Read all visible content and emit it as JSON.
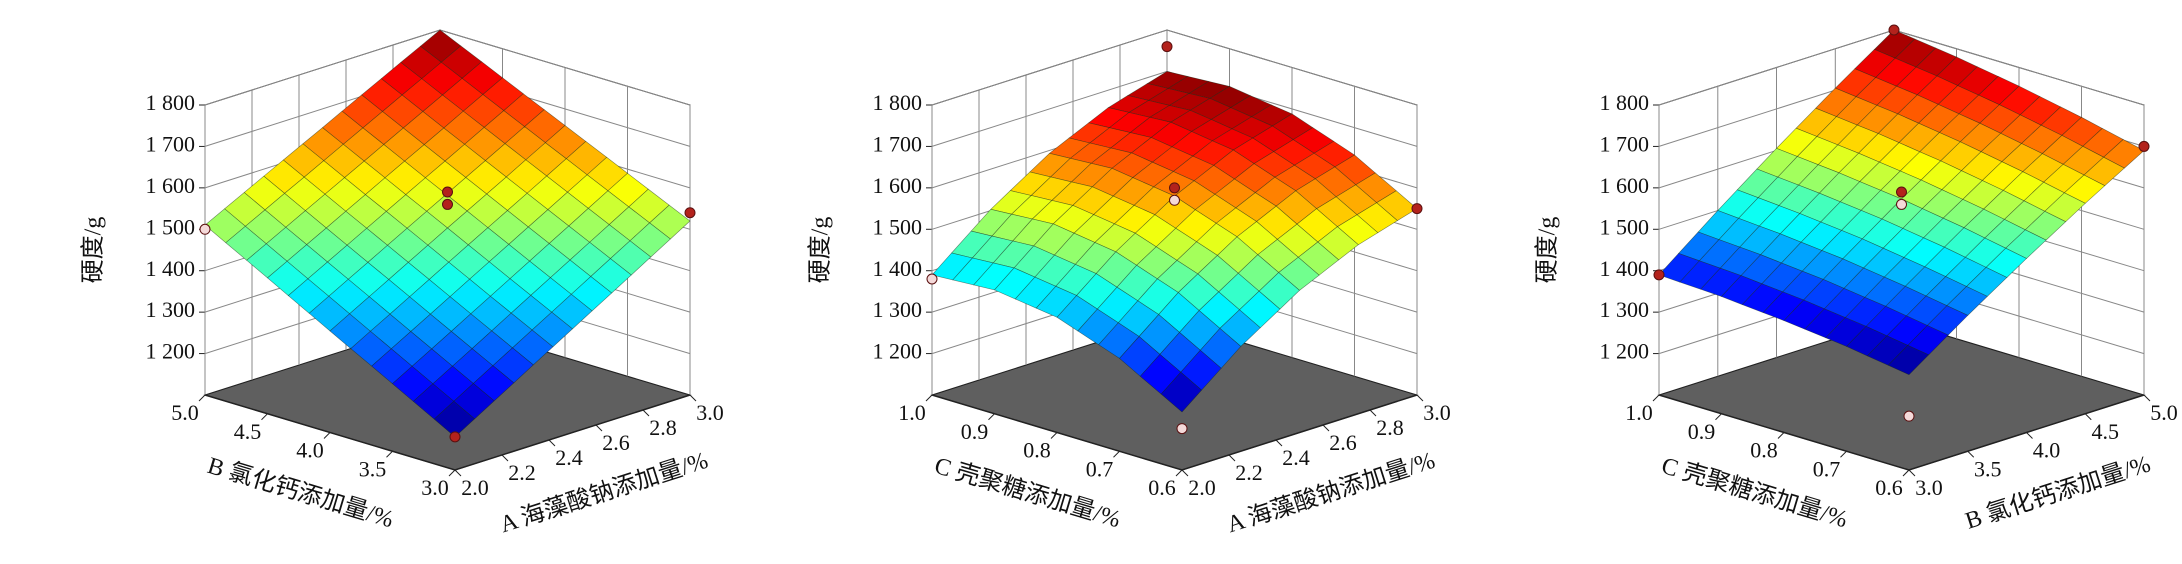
{
  "chart_data": [
    {
      "type": "surface",
      "z_label": "硬度/g",
      "x_label": "A 海藻酸钠添加量/%",
      "y_label": "B 氯化钙添加量/%",
      "xlim": [
        2,
        3
      ],
      "xticks": [
        {
          "value": 2,
          "label": "2.0"
        },
        2.2,
        2.4,
        2.6,
        2.8,
        {
          "value": 3,
          "label": "3.0"
        }
      ],
      "ylim": [
        3,
        5
      ],
      "yticks": [
        {
          "value": 3,
          "label": "3.0"
        },
        3.5,
        {
          "value": 4,
          "label": "4.0"
        },
        4.5,
        {
          "value": 5,
          "label": "5.0"
        }
      ],
      "zlim": [
        1100,
        1800
      ],
      "zticks": [
        {
          "value": 1200,
          "label": "1 200"
        },
        {
          "value": 1300,
          "label": "1 300"
        },
        {
          "value": 1400,
          "label": "1 400"
        },
        {
          "value": 1500,
          "label": "1 500"
        },
        {
          "value": 1600,
          "label": "1 600"
        },
        {
          "value": 1700,
          "label": "1 700"
        },
        {
          "value": 1800,
          "label": "1 800"
        }
      ],
      "x": [
        2,
        2.25,
        2.5,
        2.75,
        3
      ],
      "y": [
        3,
        3.5,
        4,
        4.5,
        5
      ],
      "z": [
        [
          1180,
          1263,
          1345,
          1428,
          1510
        ],
        [
          1265,
          1344,
          1424,
          1503,
          1583
        ],
        [
          1350,
          1426,
          1503,
          1579,
          1655
        ],
        [
          1435,
          1508,
          1581,
          1654,
          1728
        ],
        [
          1520,
          1590,
          1660,
          1730,
          1800
        ]
      ],
      "points": {
        "x": [
          2,
          3,
          2,
          2.5,
          2.5
        ],
        "y": [
          3,
          3,
          5,
          4,
          4
        ],
        "z": [
          1180,
          1540,
          1500,
          1590,
          1560
        ]
      }
    },
    {
      "type": "surface",
      "z_label": "硬度/g",
      "x_label": "A 海藻酸钠添加量/%",
      "y_label": "C 壳聚糖添加量/%",
      "xlim": [
        2,
        3
      ],
      "xticks": [
        {
          "value": 2,
          "label": "2.0"
        },
        2.2,
        2.4,
        2.6,
        2.8,
        {
          "value": 3,
          "label": "3.0"
        }
      ],
      "ylim": [
        0.6,
        1
      ],
      "yticks": [
        0.6,
        0.7,
        0.8,
        0.9,
        {
          "value": 1,
          "label": "1.0"
        }
      ],
      "zlim": [
        1100,
        1800
      ],
      "zticks": [
        {
          "value": 1200,
          "label": "1 200"
        },
        {
          "value": 1300,
          "label": "1 300"
        },
        {
          "value": 1400,
          "label": "1 400"
        },
        {
          "value": 1500,
          "label": "1 500"
        },
        {
          "value": 1600,
          "label": "1 600"
        },
        {
          "value": 1700,
          "label": "1 700"
        },
        {
          "value": 1800,
          "label": "1 800"
        }
      ],
      "x": [
        2,
        2.25,
        2.5,
        2.75,
        3
      ],
      "y": [
        0.6,
        0.7,
        0.8,
        0.9,
        1
      ],
      "z": [
        [
          1240,
          1324,
          1378,
          1399,
          1390
        ],
        [
          1353,
          1438,
          1491,
          1513,
          1503
        ],
        [
          1443,
          1527,
          1580,
          1602,
          1593
        ],
        [
          1508,
          1593,
          1646,
          1668,
          1658
        ],
        [
          1550,
          1634,
          1688,
          1709,
          1700
        ]
      ],
      "points": {
        "x": [
          2,
          3,
          2,
          2.5,
          2.5,
          3
        ],
        "y": [
          0.6,
          0.6,
          1,
          0.8,
          0.8,
          1
        ],
        "z": [
          1200,
          1550,
          1380,
          1600,
          1570,
          1760
        ]
      }
    },
    {
      "type": "surface",
      "z_label": "硬度/g",
      "x_label": "B 氯化钙添加量/%",
      "y_label": "C 壳聚糖添加量/%",
      "xlim": [
        3,
        5
      ],
      "xticks": [
        {
          "value": 3,
          "label": "3.0"
        },
        3.5,
        {
          "value": 4,
          "label": "4.0"
        },
        4.5,
        {
          "value": 5,
          "label": "5.0"
        }
      ],
      "ylim": [
        0.6,
        1
      ],
      "yticks": [
        0.6,
        0.7,
        0.8,
        0.9,
        {
          "value": 1,
          "label": "1.0"
        }
      ],
      "zlim": [
        1100,
        1800
      ],
      "zticks": [
        {
          "value": 1200,
          "label": "1 200"
        },
        {
          "value": 1300,
          "label": "1 300"
        },
        {
          "value": 1400,
          "label": "1 400"
        },
        {
          "value": 1500,
          "label": "1 500"
        },
        {
          "value": 1600,
          "label": "1 600"
        },
        {
          "value": 1700,
          "label": "1 700"
        },
        {
          "value": 1800,
          "label": "1 800"
        }
      ],
      "x": [
        3,
        3.5,
        4,
        4.5,
        5
      ],
      "y": [
        0.6,
        0.7,
        0.8,
        0.9,
        1
      ],
      "z": [
        [
          1330,
          1353,
          1370,
          1383,
          1390
        ],
        [
          1428,
          1453,
          1474,
          1489,
          1500
        ],
        [
          1520,
          1549,
          1573,
          1591,
          1605
        ],
        [
          1608,
          1639,
          1666,
          1688,
          1705
        ],
        [
          1690,
          1725,
          1755,
          1780,
          1800
        ]
      ],
      "points": {
        "x": [
          3,
          5,
          3,
          4,
          4,
          5
        ],
        "y": [
          0.6,
          0.6,
          1,
          0.8,
          0.8,
          1
        ],
        "z": [
          1230,
          1700,
          1390,
          1590,
          1560,
          1800
        ]
      }
    }
  ]
}
